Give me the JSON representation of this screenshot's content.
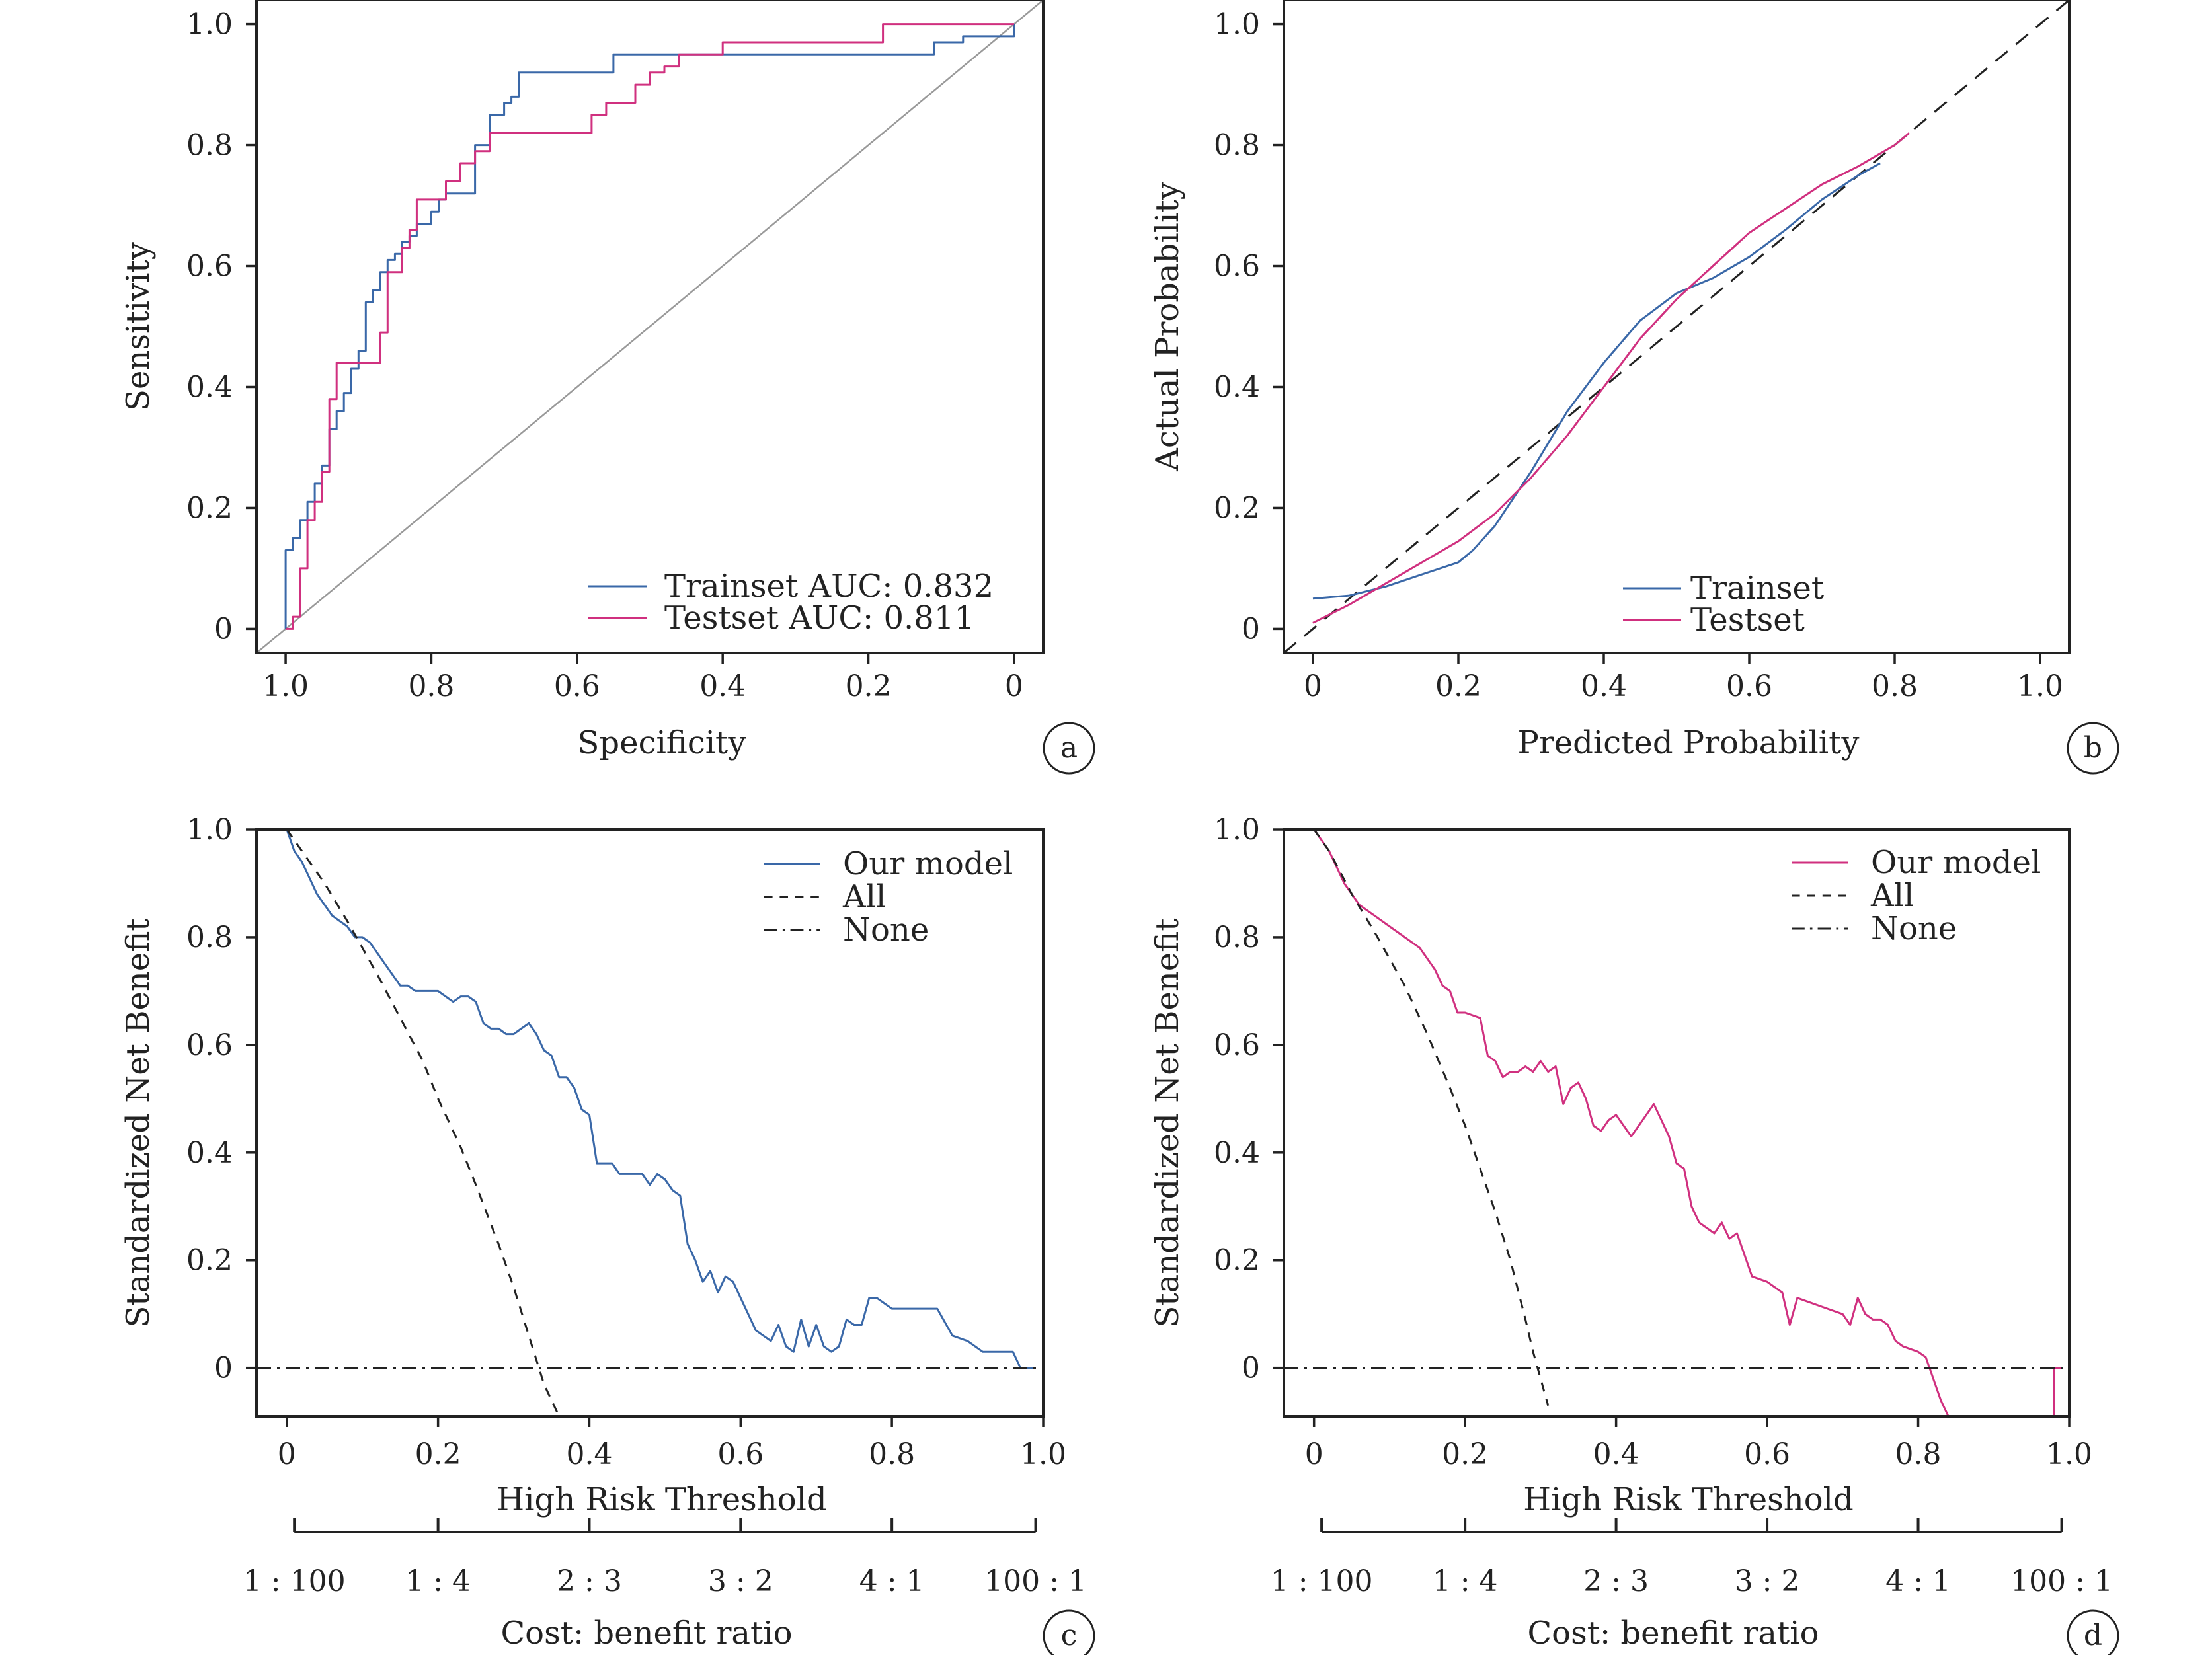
{
  "chart_data": [
    {
      "panel": "a",
      "type": "line",
      "xlabel": "Specificity",
      "ylabel": "Sensitivity",
      "x_reversed": true,
      "xlim": [
        1.04,
        -0.04
      ],
      "ylim": [
        -0.04,
        1.04
      ],
      "xticks": [
        "1.0",
        "0.8",
        "0.6",
        "0.4",
        "0.2",
        "0"
      ],
      "yticks": [
        "0",
        "0.2",
        "0.4",
        "0.6",
        "0.8",
        "1.0"
      ],
      "xtick_values": [
        1.0,
        0.8,
        0.6,
        0.4,
        0.2,
        0.0
      ],
      "ytick_values": [
        0,
        0.2,
        0.4,
        0.6,
        0.8,
        1.0
      ],
      "reference": {
        "x": [
          1.04,
          -0.04
        ],
        "y": [
          -0.04,
          1.04
        ],
        "color": "#999999"
      },
      "series": [
        {
          "name": "Trainset AUC: 0.832",
          "color": "#3a68a8",
          "step": true,
          "x": [
            1.0,
            1.0,
            0.99,
            0.98,
            0.97,
            0.97,
            0.96,
            0.95,
            0.94,
            0.93,
            0.92,
            0.91,
            0.9,
            0.89,
            0.88,
            0.87,
            0.86,
            0.85,
            0.84,
            0.83,
            0.82,
            0.8,
            0.79,
            0.78,
            0.75,
            0.74,
            0.72,
            0.7,
            0.69,
            0.68,
            0.6,
            0.55,
            0.4,
            0.3,
            0.2,
            0.12,
            0.11,
            0.07,
            0.0
          ],
          "y": [
            0.0,
            0.13,
            0.15,
            0.18,
            0.21,
            0.21,
            0.24,
            0.27,
            0.33,
            0.36,
            0.39,
            0.43,
            0.46,
            0.54,
            0.56,
            0.59,
            0.61,
            0.62,
            0.64,
            0.65,
            0.67,
            0.69,
            0.71,
            0.72,
            0.72,
            0.8,
            0.85,
            0.87,
            0.88,
            0.92,
            0.92,
            0.95,
            0.95,
            0.95,
            0.95,
            0.95,
            0.97,
            0.98,
            1.0
          ]
        },
        {
          "name": "Testset AUC: 0.811",
          "color": "#d0307f",
          "step": true,
          "x": [
            1.0,
            0.99,
            0.98,
            0.97,
            0.96,
            0.95,
            0.94,
            0.93,
            0.92,
            0.91,
            0.9,
            0.88,
            0.87,
            0.86,
            0.84,
            0.83,
            0.82,
            0.8,
            0.78,
            0.76,
            0.74,
            0.72,
            0.68,
            0.6,
            0.58,
            0.56,
            0.52,
            0.5,
            0.48,
            0.46,
            0.4,
            0.3,
            0.2,
            0.18,
            0.15,
            0.1,
            0.05,
            0.0
          ],
          "y": [
            0.0,
            0.02,
            0.1,
            0.18,
            0.21,
            0.26,
            0.38,
            0.44,
            0.44,
            0.44,
            0.44,
            0.44,
            0.49,
            0.59,
            0.63,
            0.66,
            0.71,
            0.71,
            0.74,
            0.77,
            0.79,
            0.82,
            0.82,
            0.82,
            0.85,
            0.87,
            0.9,
            0.92,
            0.93,
            0.95,
            0.97,
            0.97,
            0.97,
            1.0,
            1.0,
            1.0,
            1.0,
            1.0
          ]
        }
      ],
      "legend_position": "bottom-right"
    },
    {
      "panel": "b",
      "type": "line",
      "xlabel": "Predicted  Probability",
      "ylabel": "Actual Probability",
      "xlim": [
        -0.04,
        1.04
      ],
      "ylim": [
        -0.04,
        1.04
      ],
      "xticks": [
        "0",
        "0.2",
        "0.4",
        "0.6",
        "0.8",
        "1.0"
      ],
      "yticks": [
        "0",
        "0.2",
        "0.4",
        "0.6",
        "0.8",
        "1.0"
      ],
      "xtick_values": [
        0,
        0.2,
        0.4,
        0.6,
        0.8,
        1.0
      ],
      "ytick_values": [
        0,
        0.2,
        0.4,
        0.6,
        0.8,
        1.0
      ],
      "reference": {
        "x": [
          -0.04,
          1.04
        ],
        "y": [
          -0.04,
          1.04
        ],
        "color": "#222222",
        "dash": "24,16"
      },
      "series": [
        {
          "name": "Trainset",
          "color": "#3a68a8",
          "x": [
            0.0,
            0.05,
            0.1,
            0.15,
            0.2,
            0.22,
            0.25,
            0.3,
            0.35,
            0.4,
            0.45,
            0.5,
            0.55,
            0.6,
            0.65,
            0.7,
            0.75,
            0.78
          ],
          "y": [
            0.05,
            0.055,
            0.07,
            0.09,
            0.11,
            0.13,
            0.17,
            0.26,
            0.36,
            0.44,
            0.51,
            0.555,
            0.58,
            0.615,
            0.66,
            0.71,
            0.75,
            0.77
          ]
        },
        {
          "name": "Testset",
          "color": "#d0307f",
          "x": [
            0.0,
            0.05,
            0.1,
            0.15,
            0.2,
            0.25,
            0.3,
            0.35,
            0.4,
            0.45,
            0.5,
            0.55,
            0.6,
            0.65,
            0.7,
            0.75,
            0.8,
            0.82
          ],
          "y": [
            0.01,
            0.04,
            0.075,
            0.11,
            0.145,
            0.19,
            0.25,
            0.32,
            0.4,
            0.48,
            0.545,
            0.6,
            0.655,
            0.695,
            0.735,
            0.765,
            0.8,
            0.82
          ]
        }
      ],
      "legend_position": "bottom-center"
    },
    {
      "panel": "c",
      "type": "line",
      "xlabel": "High Risk Threshold",
      "ylabel": "Standardized Net Benefit",
      "xlim": [
        -0.04,
        1.0
      ],
      "ylim": [
        -0.09,
        1.0
      ],
      "xticks": [
        "0",
        "0.2",
        "0.4",
        "0.6",
        "0.8",
        "1.0"
      ],
      "yticks": [
        "0",
        "0.2",
        "0.4",
        "0.6",
        "0.8",
        "1.0"
      ],
      "xtick_values": [
        0,
        0.2,
        0.4,
        0.6,
        0.8,
        1.0
      ],
      "ytick_values": [
        0,
        0.2,
        0.4,
        0.6,
        0.8,
        1.0
      ],
      "series": [
        {
          "name": "Our model",
          "color": "#3a68a8",
          "x": [
            0.0,
            0.01,
            0.02,
            0.03,
            0.04,
            0.05,
            0.06,
            0.07,
            0.08,
            0.09,
            0.1,
            0.11,
            0.12,
            0.13,
            0.14,
            0.15,
            0.16,
            0.17,
            0.18,
            0.19,
            0.2,
            0.21,
            0.22,
            0.23,
            0.24,
            0.25,
            0.26,
            0.27,
            0.28,
            0.29,
            0.3,
            0.31,
            0.32,
            0.33,
            0.34,
            0.35,
            0.36,
            0.37,
            0.38,
            0.39,
            0.4,
            0.41,
            0.42,
            0.43,
            0.44,
            0.45,
            0.46,
            0.47,
            0.48,
            0.49,
            0.5,
            0.51,
            0.52,
            0.53,
            0.54,
            0.55,
            0.56,
            0.57,
            0.58,
            0.59,
            0.6,
            0.61,
            0.62,
            0.63,
            0.64,
            0.65,
            0.66,
            0.67,
            0.68,
            0.69,
            0.7,
            0.71,
            0.72,
            0.73,
            0.74,
            0.75,
            0.76,
            0.77,
            0.78,
            0.8,
            0.82,
            0.84,
            0.86,
            0.88,
            0.9,
            0.92,
            0.94,
            0.96,
            0.97,
            0.99
          ],
          "y": [
            1.0,
            0.96,
            0.94,
            0.91,
            0.88,
            0.86,
            0.84,
            0.83,
            0.82,
            0.8,
            0.8,
            0.79,
            0.77,
            0.75,
            0.73,
            0.71,
            0.71,
            0.7,
            0.7,
            0.7,
            0.7,
            0.69,
            0.68,
            0.69,
            0.69,
            0.68,
            0.64,
            0.63,
            0.63,
            0.62,
            0.62,
            0.63,
            0.64,
            0.62,
            0.59,
            0.58,
            0.54,
            0.54,
            0.52,
            0.48,
            0.47,
            0.38,
            0.38,
            0.38,
            0.36,
            0.36,
            0.36,
            0.36,
            0.34,
            0.36,
            0.35,
            0.33,
            0.32,
            0.23,
            0.2,
            0.16,
            0.18,
            0.14,
            0.17,
            0.16,
            0.13,
            0.1,
            0.07,
            0.06,
            0.05,
            0.08,
            0.04,
            0.03,
            0.09,
            0.04,
            0.08,
            0.04,
            0.03,
            0.04,
            0.09,
            0.08,
            0.08,
            0.13,
            0.13,
            0.11,
            0.11,
            0.11,
            0.11,
            0.06,
            0.05,
            0.03,
            0.03,
            0.03,
            0.0,
            0.0
          ]
        },
        {
          "name": "All",
          "color": "#222222",
          "dash": "14,12",
          "x": [
            0.0,
            0.02,
            0.05,
            0.08,
            0.1,
            0.12,
            0.15,
            0.18,
            0.2,
            0.23,
            0.25,
            0.28,
            0.3,
            0.32,
            0.34,
            0.36
          ],
          "y": [
            1.0,
            0.96,
            0.9,
            0.83,
            0.78,
            0.73,
            0.65,
            0.57,
            0.5,
            0.41,
            0.34,
            0.23,
            0.15,
            0.06,
            -0.03,
            -0.09
          ]
        },
        {
          "name": "None",
          "color": "#222222",
          "dash": "22,9,4,9",
          "x": [
            -0.04,
            1.0
          ],
          "y": [
            0.0,
            0.0
          ]
        }
      ],
      "legend_position": "top-right",
      "secondary_axis": {
        "title": "Cost: benefit ratio",
        "labels": [
          "1 : 100",
          "1 : 4",
          "2 : 3",
          "3 : 2",
          "4 : 1",
          "100 : 1"
        ],
        "positions": [
          0.01,
          0.2,
          0.4,
          0.6,
          0.8,
          0.99
        ]
      }
    },
    {
      "panel": "d",
      "type": "line",
      "xlabel": "High Risk Threshold",
      "ylabel": "Standardized Net Benefit",
      "xlim": [
        -0.04,
        1.0
      ],
      "ylim": [
        -0.09,
        1.0
      ],
      "xticks": [
        "0",
        "0.2",
        "0.4",
        "0.6",
        "0.8",
        "1.0"
      ],
      "yticks": [
        "0",
        "0.2",
        "0.4",
        "0.6",
        "0.8",
        "1.0"
      ],
      "xtick_values": [
        0,
        0.2,
        0.4,
        0.6,
        0.8,
        1.0
      ],
      "ytick_values": [
        0,
        0.2,
        0.4,
        0.6,
        0.8,
        1.0
      ],
      "series": [
        {
          "name": "Our model",
          "color": "#d0307f",
          "x": [
            0.0,
            0.01,
            0.02,
            0.03,
            0.04,
            0.05,
            0.06,
            0.08,
            0.1,
            0.12,
            0.14,
            0.16,
            0.17,
            0.18,
            0.19,
            0.2,
            0.22,
            0.23,
            0.24,
            0.25,
            0.26,
            0.27,
            0.28,
            0.29,
            0.3,
            0.31,
            0.32,
            0.33,
            0.34,
            0.35,
            0.36,
            0.37,
            0.38,
            0.39,
            0.4,
            0.41,
            0.42,
            0.43,
            0.44,
            0.45,
            0.46,
            0.47,
            0.48,
            0.49,
            0.5,
            0.51,
            0.52,
            0.53,
            0.54,
            0.55,
            0.56,
            0.58,
            0.6,
            0.62,
            0.63,
            0.64,
            0.66,
            0.68,
            0.7,
            0.71,
            0.72,
            0.73,
            0.74,
            0.75,
            0.76,
            0.77,
            0.78,
            0.8,
            0.81,
            0.82,
            0.83,
            0.84,
            0.98,
            0.98,
            0.99
          ],
          "y": [
            1.0,
            0.98,
            0.96,
            0.93,
            0.9,
            0.88,
            0.86,
            0.84,
            0.82,
            0.8,
            0.78,
            0.74,
            0.71,
            0.7,
            0.66,
            0.66,
            0.65,
            0.58,
            0.57,
            0.54,
            0.55,
            0.55,
            0.56,
            0.55,
            0.57,
            0.55,
            0.56,
            0.49,
            0.52,
            0.53,
            0.5,
            0.45,
            0.44,
            0.46,
            0.47,
            0.45,
            0.43,
            0.45,
            0.47,
            0.49,
            0.46,
            0.43,
            0.38,
            0.37,
            0.3,
            0.27,
            0.26,
            0.25,
            0.27,
            0.24,
            0.25,
            0.17,
            0.16,
            0.14,
            0.08,
            0.13,
            0.12,
            0.11,
            0.1,
            0.08,
            0.13,
            0.1,
            0.09,
            0.09,
            0.08,
            0.05,
            0.04,
            0.03,
            0.02,
            -0.02,
            -0.06,
            -0.09,
            -0.09,
            0.0,
            0.0
          ]
        },
        {
          "name": "All",
          "color": "#222222",
          "dash": "14,12",
          "x": [
            0.0,
            0.02,
            0.05,
            0.08,
            0.1,
            0.12,
            0.15,
            0.18,
            0.2,
            0.22,
            0.24,
            0.26,
            0.28,
            0.29,
            0.31
          ],
          "y": [
            1.0,
            0.96,
            0.88,
            0.81,
            0.76,
            0.71,
            0.62,
            0.52,
            0.45,
            0.37,
            0.29,
            0.2,
            0.09,
            0.03,
            -0.07
          ]
        },
        {
          "name": "None",
          "color": "#222222",
          "dash": "22,9,4,9",
          "x": [
            -0.04,
            1.0
          ],
          "y": [
            0.0,
            0.0
          ]
        }
      ],
      "legend_position": "top-right",
      "secondary_axis": {
        "title": "Cost: benefit ratio",
        "labels": [
          "1 : 100",
          "1 : 4",
          "2 : 3",
          "3 : 2",
          "4 : 1",
          "100 : 1"
        ],
        "positions": [
          0.01,
          0.2,
          0.4,
          0.6,
          0.8,
          0.99
        ]
      }
    }
  ]
}
